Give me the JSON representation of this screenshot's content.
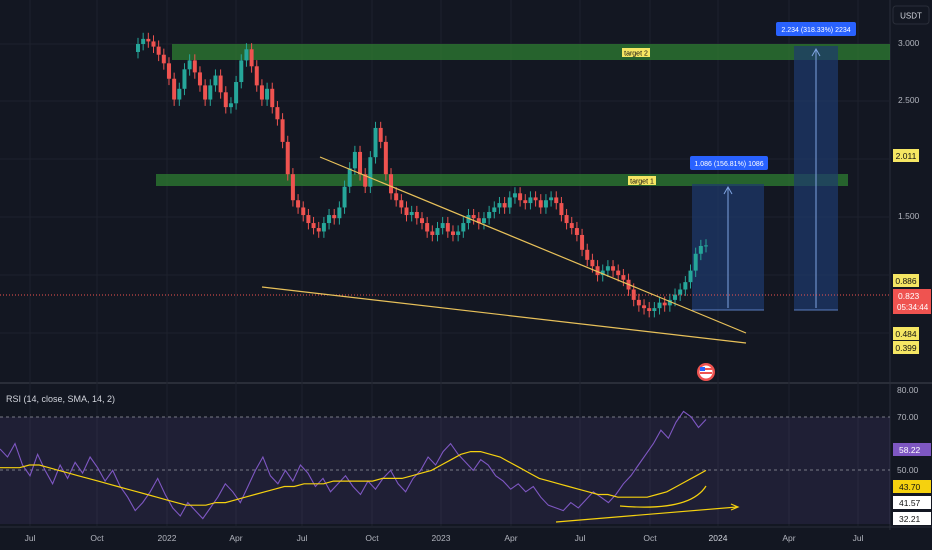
{
  "header": {
    "currency": "USDT"
  },
  "main_chart": {
    "y_ticks": [
      "3.000",
      "2.500",
      "1.500"
    ],
    "price_badges": {
      "target2_level": "2.011",
      "resistance": "0.886",
      "current_price": "0.823",
      "countdown": "05:34:44",
      "support_upper": "0.484",
      "support_lower": "0.399"
    },
    "zones": [
      {
        "label": "target 2"
      },
      {
        "label": "target 1"
      }
    ],
    "projections": [
      {
        "label": "1.086 (156.81%) 1086"
      },
      {
        "label": "2.234 (318.33%) 2234"
      }
    ],
    "colors": {
      "up": "#26a69a",
      "down": "#ef5350",
      "zone": "#2e7d32",
      "trendline": "#e8c15a",
      "projection": "#1e3a6e"
    }
  },
  "rsi_panel": {
    "title": "RSI (14, close, SMA, 14, 2)",
    "y_ticks": [
      "80.00",
      "70.00",
      "50.00"
    ],
    "badges": {
      "rsi": "58.22",
      "sma": "43.70",
      "level_a": "41.57",
      "level_b": "32.21"
    }
  },
  "x_axis": {
    "labels": [
      "Jul",
      "Oct",
      "2022",
      "Apr",
      "Jul",
      "Oct",
      "2023",
      "Apr",
      "Jul",
      "Oct",
      "2024",
      "Apr",
      "Jul"
    ]
  },
  "chart_data": [
    {
      "type": "candlestick",
      "title": "",
      "y_unit": "USDT",
      "approx_close_series": [
        3.0,
        3.1,
        3.05,
        2.95,
        2.8,
        2.65,
        2.4,
        2.1,
        2.25,
        2.55,
        2.7,
        2.5,
        2.3,
        2.1,
        2.3,
        2.45,
        2.2,
        2.0,
        2.05,
        2.35,
        2.7,
        2.9,
        2.6,
        2.3,
        2.1,
        2.25,
        2.0,
        1.85,
        1.6,
        1.3,
        1.1,
        1.05,
        1.0,
        0.95,
        0.92,
        0.9,
        0.95,
        1.0,
        0.98,
        1.05,
        1.2,
        1.35,
        1.5,
        1.3,
        1.2,
        1.45,
        1.75,
        1.6,
        1.3,
        1.15,
        1.1,
        1.05,
        1.0,
        1.02,
        0.98,
        0.95,
        0.9,
        0.88,
        0.92,
        0.95,
        0.9,
        0.88,
        0.9,
        0.95,
        1.0,
        0.98,
        0.95,
        0.98,
        1.02,
        1.05,
        1.08,
        1.05,
        1.12,
        1.15,
        1.1,
        1.08,
        1.12,
        1.1,
        1.05,
        1.1,
        1.12,
        1.08,
        1.0,
        0.95,
        0.92,
        0.88,
        0.8,
        0.75,
        0.72,
        0.68,
        0.7,
        0.72,
        0.7,
        0.68,
        0.66,
        0.62,
        0.58,
        0.56,
        0.55,
        0.54,
        0.55,
        0.57,
        0.56,
        0.58,
        0.6,
        0.62,
        0.65,
        0.7,
        0.78,
        0.82,
        0.823
      ],
      "zones": [
        {
          "name": "target 1",
          "value": 2.0
        },
        {
          "name": "target 2",
          "value": 3.0
        }
      ],
      "projection_labels": [
        "1.086 (156.81%) 1086",
        "2.234 (318.33%) 2234"
      ]
    },
    {
      "type": "line",
      "title": "RSI (14, close, SMA, 14, 2)",
      "ylim": [
        30,
        80
      ],
      "series": [
        {
          "values": [
            58,
            55,
            60,
            52,
            48,
            56,
            50,
            45,
            52,
            47,
            53,
            49,
            55,
            51,
            46,
            50,
            44,
            40,
            35,
            38,
            42,
            47,
            41,
            36,
            33,
            38,
            35,
            32,
            36,
            40,
            45,
            42,
            38,
            44,
            50,
            55,
            48,
            45,
            50,
            46,
            52,
            49,
            44,
            47,
            42,
            45,
            48,
            44,
            41,
            46,
            43,
            47,
            50,
            45,
            42,
            47,
            50,
            55,
            52,
            57,
            60,
            56,
            53,
            50,
            54,
            52,
            48,
            46,
            43,
            45,
            42,
            44,
            40,
            37,
            36,
            35,
            38,
            36,
            39,
            42,
            40,
            38,
            41,
            45,
            48,
            52,
            56,
            60,
            65,
            62,
            68,
            72,
            70,
            66,
            69
          ]
        },
        {
          "values": [
            51,
            51,
            51,
            52,
            52,
            51,
            50,
            49,
            48,
            47,
            46,
            45,
            44,
            43,
            42,
            41,
            40,
            39,
            38,
            37,
            37,
            37,
            38,
            38,
            39,
            40,
            41,
            42,
            43,
            44,
            44,
            45,
            45,
            45,
            46,
            46,
            46,
            46,
            46,
            47,
            47,
            47,
            48,
            49,
            50,
            52,
            54,
            56,
            57,
            57,
            56,
            55,
            53,
            51,
            49,
            47,
            46,
            45,
            44,
            43,
            42,
            41,
            41,
            40,
            40,
            40,
            40,
            41,
            42,
            44,
            46,
            48,
            50
          ]
        }
      ]
    }
  ]
}
